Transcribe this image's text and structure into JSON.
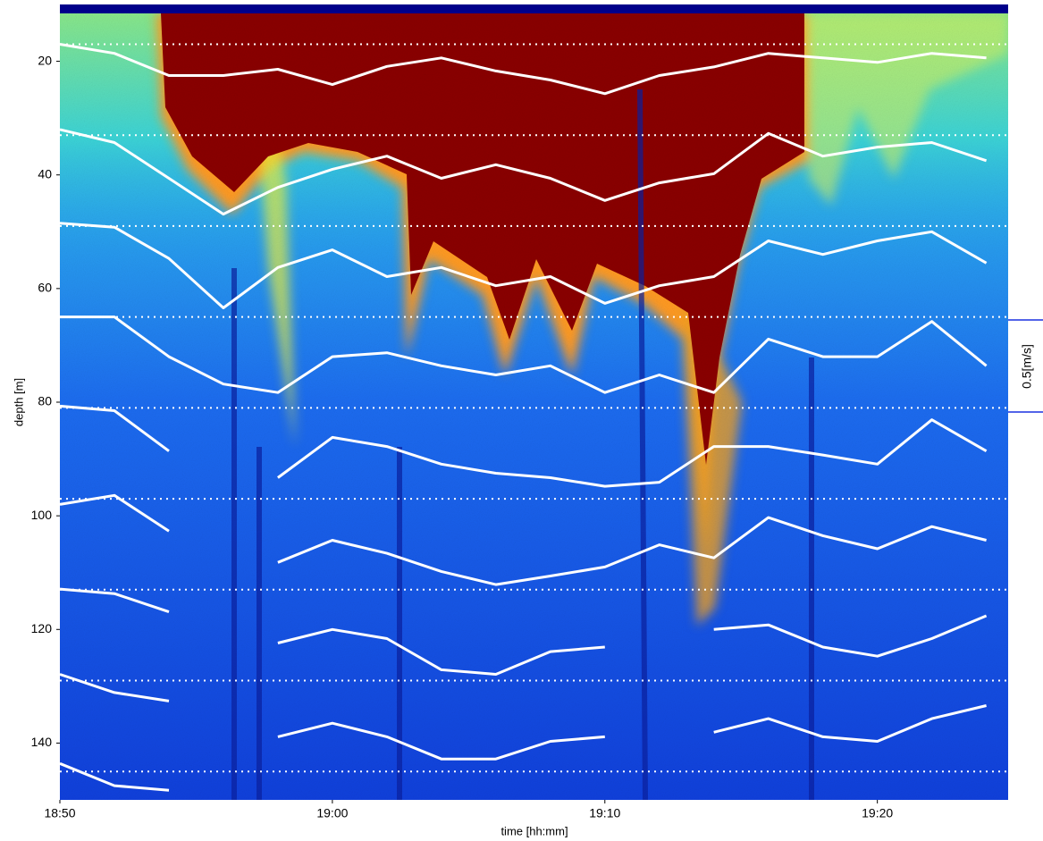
{
  "chart_data": {
    "type": "line",
    "xlabel": "time [hh:mm]",
    "ylabel": "depth [m]",
    "scale_label": "0.5[m/s]",
    "x": [
      0,
      2,
      4,
      6,
      8,
      10,
      12,
      14,
      16,
      18,
      20,
      22,
      24,
      26,
      28,
      30,
      32,
      34
    ],
    "xlim": [
      0,
      34.8
    ],
    "ylim": [
      10,
      150
    ],
    "y_inverted": true,
    "xticks": [
      {
        "value": 0,
        "label": "18:50"
      },
      {
        "value": 10,
        "label": "19:00"
      },
      {
        "value": 20,
        "label": "19:10"
      },
      {
        "value": 30,
        "label": "19:20"
      }
    ],
    "yticks": [
      20,
      40,
      60,
      80,
      100,
      120,
      140
    ],
    "line_color": "#ffffff",
    "ref_line_color": "#ffffff",
    "reference_depths": [
      17,
      33,
      49,
      65,
      81,
      97,
      113,
      129,
      145
    ],
    "series": [
      {
        "values": [
          17.0,
          18.6,
          22.5,
          22.5,
          21.4,
          24.1,
          20.9,
          19.4,
          21.7,
          23.3,
          25.7,
          22.5,
          21.0,
          18.6,
          19.4,
          20.2,
          18.6,
          19.4
        ]
      },
      {
        "values": [
          32.0,
          34.3,
          40.6,
          46.9,
          42.2,
          39.0,
          36.7,
          40.6,
          38.2,
          40.6,
          44.5,
          41.4,
          39.8,
          32.7,
          36.7,
          35.1,
          34.3,
          37.5
        ]
      },
      {
        "values": [
          48.5,
          49.2,
          54.7,
          63.4,
          56.3,
          53.2,
          57.9,
          56.3,
          59.5,
          57.9,
          62.6,
          59.5,
          57.9,
          51.6,
          54.0,
          51.6,
          50.0,
          55.5
        ]
      },
      {
        "values": [
          65.0,
          65.0,
          72.0,
          76.8,
          78.3,
          72.0,
          71.3,
          73.6,
          75.2,
          73.6,
          78.3,
          75.2,
          78.3,
          68.9,
          72.0,
          72.0,
          65.8,
          73.6
        ]
      },
      {
        "values": [
          80.7,
          81.5,
          88.6,
          null,
          93.3,
          86.2,
          87.8,
          90.9,
          92.5,
          93.3,
          94.8,
          94.1,
          87.8,
          87.8,
          89.3,
          90.9,
          83.1,
          88.6
        ]
      },
      {
        "values": [
          98.0,
          96.4,
          102.7,
          null,
          108.2,
          104.3,
          106.6,
          109.8,
          112.1,
          110.6,
          109.0,
          105.1,
          107.4,
          100.3,
          103.5,
          105.8,
          101.9,
          104.3
        ]
      },
      {
        "values": [
          112.9,
          113.7,
          116.9,
          null,
          122.4,
          120.0,
          121.6,
          127.1,
          127.9,
          123.9,
          123.1,
          null,
          120.0,
          119.2,
          123.1,
          124.7,
          121.6,
          117.6
        ]
      },
      {
        "values": [
          127.9,
          131.1,
          132.6,
          null,
          138.9,
          136.5,
          138.9,
          142.8,
          142.8,
          139.7,
          138.9,
          null,
          138.1,
          135.7,
          138.9,
          139.7,
          135.7,
          133.4
        ]
      },
      {
        "values": [
          143.6,
          147.5,
          148.3,
          null,
          null,
          null,
          null,
          null,
          null,
          null,
          null,
          null,
          null,
          null,
          null,
          null,
          null,
          null
        ]
      }
    ]
  }
}
